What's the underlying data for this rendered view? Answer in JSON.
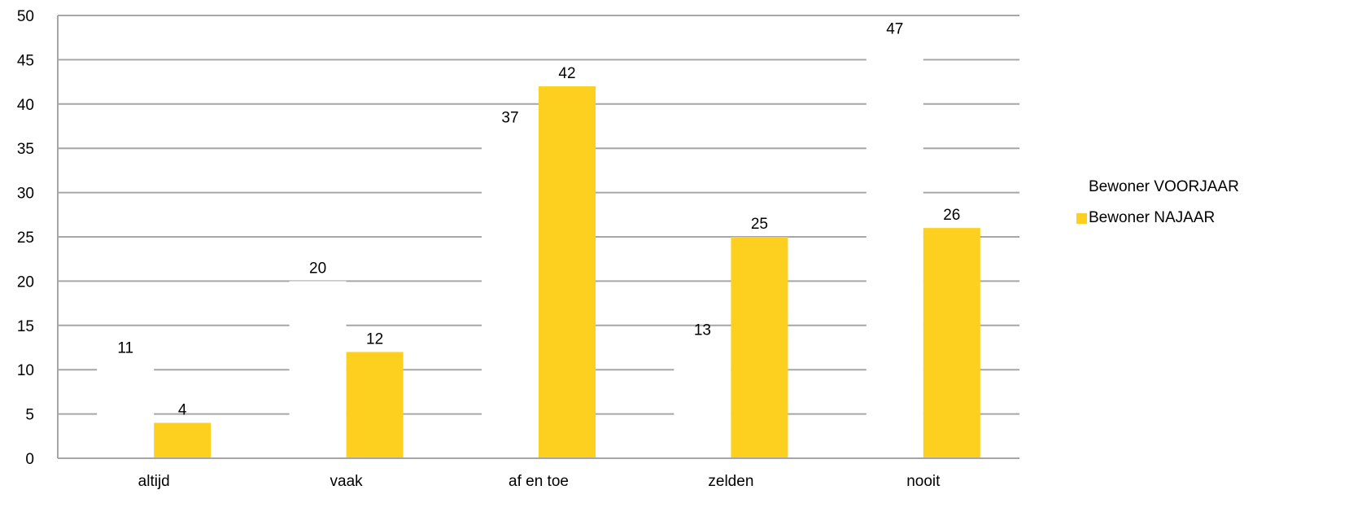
{
  "chart_data": {
    "type": "bar",
    "categories": [
      "altijd",
      "vaak",
      "af en toe",
      "zelden",
      "nooit"
    ],
    "series": [
      {
        "name": "Bewoner VOORJAAR",
        "values": [
          11,
          20,
          37,
          13,
          47
        ],
        "color": "#FFFFFF"
      },
      {
        "name": "Bewoner NAJAAR",
        "values": [
          4,
          12,
          42,
          25,
          26
        ],
        "color": "#FDD01F"
      }
    ],
    "ylim": [
      0,
      50
    ],
    "yticks": [
      0,
      5,
      10,
      15,
      20,
      25,
      30,
      35,
      40,
      45,
      50
    ],
    "grid": true,
    "gridline_color": "#A6A6A6",
    "legend_position": "right",
    "title": "",
    "xlabel": "",
    "ylabel": ""
  }
}
